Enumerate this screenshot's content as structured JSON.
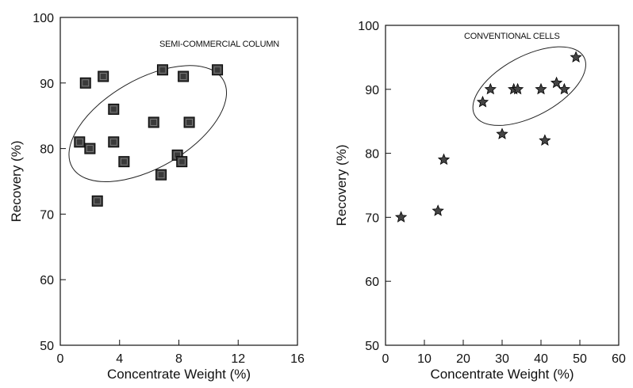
{
  "chart_data": [
    {
      "type": "scatter",
      "annotation": "SEMI-COMMERCIAL COLUMN",
      "xlabel": "Concentrate Weight (%)",
      "ylabel": "Recovery (%)",
      "xlim": [
        0,
        16
      ],
      "ylim": [
        50,
        100
      ],
      "xticks": [
        0,
        4,
        8,
        12,
        16
      ],
      "yticks": [
        50,
        60,
        70,
        80,
        90,
        100
      ],
      "marker": "square",
      "grid": false,
      "points": [
        {
          "x": 1.7,
          "y": 90
        },
        {
          "x": 2.9,
          "y": 91
        },
        {
          "x": 3.6,
          "y": 86
        },
        {
          "x": 1.3,
          "y": 81
        },
        {
          "x": 2.0,
          "y": 80
        },
        {
          "x": 3.6,
          "y": 81
        },
        {
          "x": 4.3,
          "y": 78
        },
        {
          "x": 2.5,
          "y": 72
        },
        {
          "x": 6.3,
          "y": 84
        },
        {
          "x": 6.9,
          "y": 92
        },
        {
          "x": 8.3,
          "y": 91
        },
        {
          "x": 8.7,
          "y": 84
        },
        {
          "x": 10.6,
          "y": 92
        },
        {
          "x": 7.9,
          "y": 79
        },
        {
          "x": 8.2,
          "y": 78
        },
        {
          "x": 6.8,
          "y": 76
        }
      ]
    },
    {
      "type": "scatter",
      "annotation": "CONVENTIONAL CELLS",
      "xlabel": "Concentrate Weight (%)",
      "ylabel": "Recovery (%)",
      "xlim": [
        0,
        60
      ],
      "ylim": [
        50,
        100
      ],
      "xticks": [
        0,
        10,
        20,
        30,
        40,
        50,
        60
      ],
      "yticks": [
        50,
        60,
        70,
        80,
        90,
        100
      ],
      "marker": "star",
      "grid": false,
      "points": [
        {
          "x": 4,
          "y": 70
        },
        {
          "x": 13.5,
          "y": 71
        },
        {
          "x": 15,
          "y": 79
        },
        {
          "x": 25,
          "y": 88
        },
        {
          "x": 27,
          "y": 90
        },
        {
          "x": 30,
          "y": 83
        },
        {
          "x": 33,
          "y": 90
        },
        {
          "x": 34,
          "y": 90
        },
        {
          "x": 40,
          "y": 90
        },
        {
          "x": 41,
          "y": 82
        },
        {
          "x": 44,
          "y": 91
        },
        {
          "x": 46,
          "y": 90
        },
        {
          "x": 49,
          "y": 95
        }
      ]
    }
  ]
}
